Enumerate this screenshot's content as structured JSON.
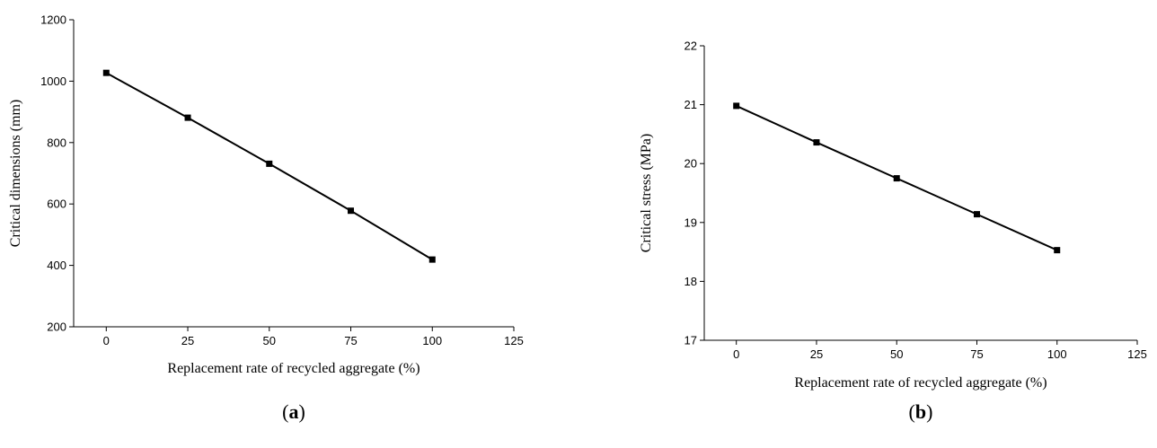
{
  "chart_data": [
    {
      "type": "line",
      "panel_label": "a",
      "title": "",
      "xlabel": "Replacement rate of recycled aggregate (%)",
      "ylabel": "Critical dimensions (mm)",
      "xlim": [
        -10,
        125
      ],
      "ylim": [
        200,
        1200
      ],
      "xticks": [
        0,
        25,
        50,
        75,
        100,
        125
      ],
      "yticks": [
        200,
        400,
        600,
        800,
        1000,
        1200
      ],
      "grid": false,
      "x": [
        0,
        25,
        50,
        75,
        100
      ],
      "series": [
        {
          "values": [
            1027,
            881,
            731,
            578,
            419
          ]
        }
      ]
    },
    {
      "type": "line",
      "panel_label": "b",
      "title": "",
      "xlabel": "Replacement rate of recycled aggregate (%)",
      "ylabel": "Critical stress (MPa)",
      "xlim": [
        -10,
        125
      ],
      "ylim": [
        17,
        22
      ],
      "xticks": [
        0,
        25,
        50,
        75,
        100,
        125
      ],
      "yticks": [
        17,
        18,
        19,
        20,
        21,
        22
      ],
      "grid": false,
      "x": [
        0,
        25,
        50,
        75,
        100
      ],
      "series": [
        {
          "values": [
            20.98,
            20.36,
            19.75,
            19.14,
            18.53
          ]
        }
      ]
    }
  ]
}
